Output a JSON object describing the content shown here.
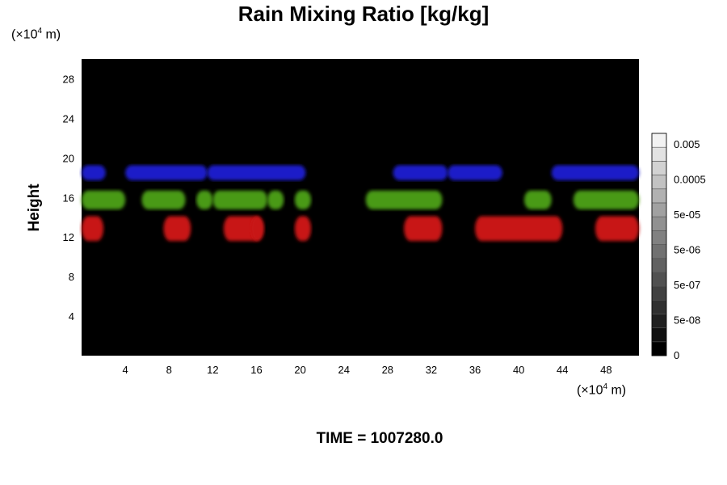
{
  "figure": {
    "title": "Rain Mixing Ratio [kg/kg]",
    "y_unit": "(×10",
    "y_unit_exp": "4",
    "y_unit_tail": " m)",
    "x_unit": "(×10",
    "x_unit_exp": "4",
    "x_unit_tail": " m)",
    "ylabel": "Height",
    "time_label": "TIME = 1007280.0"
  },
  "chart_data": {
    "type": "heatmap",
    "title": "Rain Mixing Ratio [kg/kg]",
    "xlabel": "",
    "ylabel": "Height",
    "x_unit": "×10^4 m",
    "y_unit": "×10^4 m",
    "xlim": [
      0,
      51
    ],
    "ylim": [
      0,
      30
    ],
    "x_ticks": [
      4,
      8,
      12,
      16,
      20,
      24,
      28,
      32,
      36,
      40,
      44,
      48
    ],
    "y_ticks": [
      4,
      8,
      12,
      16,
      20,
      24,
      28
    ],
    "background": "#000000",
    "colorbar": {
      "tick_labels": [
        "0",
        "5e-08",
        "5e-07",
        "5e-06",
        "5e-05",
        "0.0005",
        "0.005"
      ],
      "levels": 16,
      "color_low": "#000000",
      "color_high": "#f2f2f2"
    },
    "layers": [
      {
        "color": "#1e1ec8",
        "y_range": [
          17.5,
          19.5
        ],
        "x_segments": [
          [
            0,
            2.2
          ],
          [
            4,
            11.5
          ],
          [
            11.5,
            20.5
          ],
          [
            28.5,
            33.5
          ],
          [
            33.5,
            38.5
          ],
          [
            43,
            51
          ]
        ]
      },
      {
        "color": "#4a9a14",
        "y_range": [
          14.5,
          17
        ],
        "x_segments": [
          [
            0,
            4
          ],
          [
            5.5,
            9.5
          ],
          [
            10.5,
            12
          ],
          [
            12,
            17
          ],
          [
            17,
            18.5
          ],
          [
            19.5,
            21
          ],
          [
            26,
            33
          ],
          [
            40.5,
            43
          ],
          [
            45,
            51
          ]
        ]
      },
      {
        "color": "#c81414",
        "y_range": [
          11.2,
          14.5
        ],
        "x_segments": [
          [
            0,
            2
          ],
          [
            7.5,
            10
          ],
          [
            13,
            16.5
          ],
          [
            15.5,
            16.7
          ],
          [
            19.5,
            21
          ],
          [
            29.5,
            33
          ],
          [
            36,
            44
          ],
          [
            47,
            51
          ]
        ]
      }
    ],
    "time": "1007280.0"
  }
}
